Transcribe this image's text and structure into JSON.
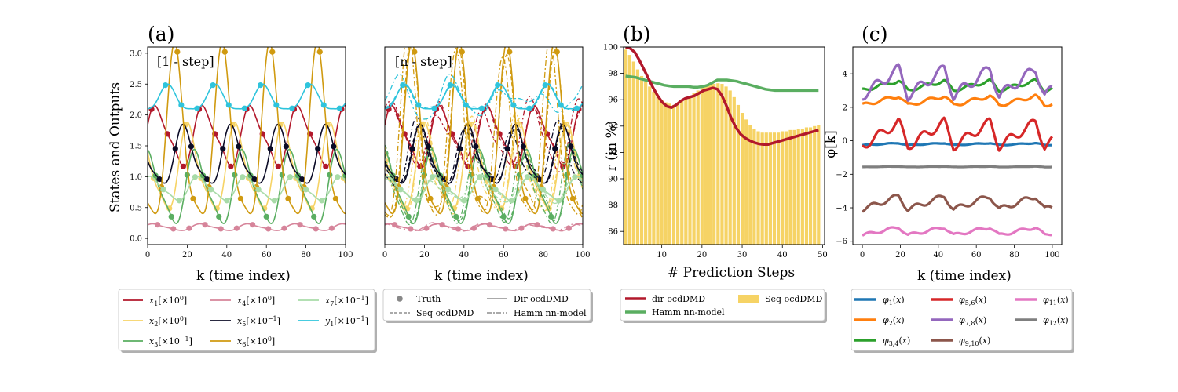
{
  "chart_data": [
    {
      "panel": "(a)",
      "note": "[1 - step]",
      "type": "line",
      "xlabel": "k (time index)",
      "ylabel": "States and Outputs",
      "xlim": [
        0,
        100
      ],
      "ylim": [
        -0.1,
        3.1
      ],
      "xticks": [
        "0",
        "20",
        "40",
        "60",
        "80",
        "100"
      ],
      "yticks": [
        "0.0",
        "0.5",
        "1.0",
        "1.5",
        "2.0",
        "2.5",
        "3.0"
      ],
      "series": [
        {
          "name": "x1[×10^0]",
          "color": "#b2182b",
          "mean": 1.65,
          "amp": 0.45,
          "period": 24,
          "phase": 0.3
        },
        {
          "name": "x2[×10^0]",
          "color": "#f6d365",
          "mean": 1.1,
          "amp": 0.65,
          "period": 24,
          "phase": 2.4
        },
        {
          "name": "x3[×10^-1]",
          "color": "#5aae61",
          "mean": 0.8,
          "amp": 0.55,
          "period": 24,
          "phase": 1.4
        },
        {
          "name": "x4[×10^0]",
          "color": "#d6849a",
          "mean": 0.18,
          "amp": 0.05,
          "period": 24,
          "phase": 0.6
        },
        {
          "name": "x5[×10^-1]",
          "color": "#0b0b26",
          "mean": 1.3,
          "amp": 0.45,
          "period": 24,
          "phase": 3.0
        },
        {
          "name": "x6[×10^0]",
          "color": "#d09a10",
          "mean": 1.5,
          "amp": 1.35,
          "period": 24,
          "phase": 4.2
        },
        {
          "name": "x7[×10^-1]",
          "color": "#a8dba8",
          "mean": 0.8,
          "amp": 0.18,
          "period": 24,
          "phase": 1.0
        },
        {
          "name": "y1[×10^-1]",
          "color": "#2ec4dc",
          "mean": 2.25,
          "amp": 0.2,
          "period": 24,
          "phase": 5.2
        }
      ]
    },
    {
      "note": "[n - step]",
      "type": "line",
      "xlabel": "k (time index)",
      "xlim": [
        0,
        100
      ],
      "ylim": [
        -0.1,
        3.1
      ],
      "xticks": [
        "0",
        "20",
        "40",
        "60",
        "80",
        "100"
      ],
      "legend": [
        "Truth",
        "Dir ocdDMD",
        "Seq ocdDMD",
        "Hamm nn-model"
      ]
    },
    {
      "panel": "(b)",
      "type": "bar",
      "xlabel": "# Prediction Steps",
      "ylabel": "r (in %)",
      "xlim": [
        0.5,
        50.5
      ],
      "ylim": [
        85,
        100
      ],
      "xticks": [
        "10",
        "20",
        "30",
        "40",
        "50"
      ],
      "yticks": [
        "86",
        "88",
        "90",
        "92",
        "94",
        "96",
        "98",
        "100"
      ],
      "steps": [
        1,
        2,
        3,
        4,
        5,
        6,
        7,
        8,
        9,
        10,
        11,
        12,
        13,
        14,
        15,
        16,
        17,
        18,
        19,
        20,
        21,
        22,
        23,
        24,
        25,
        26,
        27,
        28,
        29,
        30,
        31,
        32,
        33,
        34,
        35,
        36,
        37,
        38,
        39,
        40,
        41,
        42,
        43,
        44,
        45,
        46,
        47,
        48,
        49
      ],
      "seq_ocddmd": [
        99.8,
        99.4,
        98.9,
        98.3,
        97.8,
        97.4,
        97.0,
        96.6,
        96.3,
        96.0,
        95.8,
        95.7,
        95.6,
        95.7,
        95.9,
        96.1,
        96.3,
        96.5,
        96.7,
        96.9,
        97.0,
        97.1,
        97.2,
        97.25,
        97.2,
        97.0,
        96.7,
        96.2,
        95.6,
        95.0,
        94.5,
        94.1,
        93.8,
        93.6,
        93.5,
        93.5,
        93.5,
        93.5,
        93.5,
        93.6,
        93.6,
        93.7,
        93.7,
        93.8,
        93.8,
        93.9,
        93.9,
        94.0,
        94.1
      ],
      "dir_ocddmd": [
        100,
        99.9,
        99.6,
        99.0,
        98.3,
        97.6,
        96.9,
        96.3,
        95.8,
        95.5,
        95.4,
        95.6,
        95.9,
        96.1,
        96.2,
        96.3,
        96.5,
        96.7,
        96.8,
        96.9,
        96.8,
        96.3,
        95.5,
        94.6,
        93.9,
        93.4,
        93.1,
        92.9,
        92.75,
        92.65,
        92.6,
        92.6,
        92.7,
        92.8,
        92.9,
        93.0,
        93.1,
        93.2,
        93.3,
        93.4,
        93.5,
        93.6,
        93.7
      ],
      "dir_steps_start": 1,
      "hamm_nn_model": [
        97.8,
        97.75,
        97.7,
        97.6,
        97.5,
        97.4,
        97.3,
        97.2,
        97.1,
        97.05,
        97.0,
        97.0,
        97.0,
        97.0,
        96.95,
        96.95,
        97.0,
        97.1,
        97.3,
        97.5,
        97.5,
        97.5,
        97.45,
        97.4,
        97.3,
        97.2,
        97.1,
        97.0,
        96.9,
        96.8,
        96.75,
        96.7,
        96.7,
        96.7,
        96.7,
        96.7,
        96.7,
        96.7,
        96.7,
        96.7,
        96.7
      ],
      "legend": [
        "dir ocdDMD",
        "Seq ocdDMD",
        "Hamm nn-model"
      ],
      "colors": {
        "dir": "#b2182b",
        "seq": "#f6d365",
        "hamm": "#5aae61"
      }
    },
    {
      "panel": "(c)",
      "type": "line",
      "xlabel": "k (time index)",
      "ylabel": "φ[k]",
      "xlim": [
        -5,
        105
      ],
      "ylim": [
        -6.2,
        5.6
      ],
      "xticks": [
        "0",
        "20",
        "40",
        "60",
        "80",
        "100"
      ],
      "yticks": [
        "-6",
        "-4",
        "-2",
        "0",
        "2",
        "4"
      ],
      "series": [
        {
          "name": "φ1(x)",
          "color": "#1f77b4",
          "mean": -0.2,
          "amp": 0.08
        },
        {
          "name": "φ2(x)",
          "color": "#ff7f0e",
          "mean": 2.4,
          "amp": 0.35
        },
        {
          "name": "φ3,4(x)",
          "color": "#2ca02c",
          "mean": 3.3,
          "amp": 0.35
        },
        {
          "name": "φ5,6(x)",
          "color": "#d62728",
          "mean": 0.4,
          "amp": 0.9
        },
        {
          "name": "φ7,8(x)",
          "color": "#9467bd",
          "mean": 3.5,
          "amp": 1.0
        },
        {
          "name": "φ9,10(x)",
          "color": "#8c564b",
          "mean": -3.7,
          "amp": 0.5
        },
        {
          "name": "φ11(x)",
          "color": "#e377c2",
          "mean": -5.4,
          "amp": 0.3
        },
        {
          "name": "φ12(x)",
          "color": "#7f7f7f",
          "mean": -1.55,
          "amp": 0.02
        }
      ]
    }
  ],
  "legends": {
    "a": {
      "items": [
        {
          "label": "x",
          "sub": "1",
          "scale": "[×10",
          "exp": "0",
          "color": "#b2182b"
        },
        {
          "label": "x",
          "sub": "2",
          "scale": "[×10",
          "exp": "0",
          "color": "#f6d365"
        },
        {
          "label": "x",
          "sub": "3",
          "scale": "[×10",
          "exp": "−1",
          "color": "#5aae61"
        },
        {
          "label": "x",
          "sub": "4",
          "scale": "[×10",
          "exp": "0",
          "color": "#d6849a"
        },
        {
          "label": "x",
          "sub": "5",
          "scale": "[×10",
          "exp": "−1",
          "color": "#0b0b26"
        },
        {
          "label": "x",
          "sub": "6",
          "scale": "[×10",
          "exp": "0",
          "color": "#d09a10"
        },
        {
          "label": "x",
          "sub": "7",
          "scale": "[×10",
          "exp": "−1",
          "color": "#a8dba8"
        },
        {
          "label": "y",
          "sub": "1",
          "scale": "[×10",
          "exp": "−1",
          "color": "#2ec4dc"
        }
      ]
    },
    "a2": {
      "items": [
        {
          "label": "Truth",
          "style": "dot"
        },
        {
          "label": "Dir ocdDMD",
          "style": "solid"
        },
        {
          "label": "Seq ocdDMD",
          "style": "dashed"
        },
        {
          "label": "Hamm nn-model",
          "style": "dashdot"
        }
      ]
    },
    "b": {
      "items": [
        {
          "label": "dir ocdDMD",
          "color": "#b2182b",
          "style": "line"
        },
        {
          "label": "Seq ocdDMD",
          "color": "#f6d365",
          "style": "patch"
        },
        {
          "label": "Hamm nn-model",
          "color": "#5aae61",
          "style": "line"
        }
      ]
    },
    "c": {
      "items": [
        {
          "label": "φ",
          "sub": "1",
          "color": "#1f77b4"
        },
        {
          "label": "φ",
          "sub": "5,6",
          "color": "#d62728"
        },
        {
          "label": "φ",
          "sub": "11",
          "color": "#e377c2"
        },
        {
          "label": "φ",
          "sub": "2",
          "color": "#ff7f0e"
        },
        {
          "label": "φ",
          "sub": "7,8",
          "color": "#9467bd"
        },
        {
          "label": "φ",
          "sub": "12",
          "color": "#7f7f7f"
        },
        {
          "label": "φ",
          "sub": "3,4",
          "color": "#2ca02c"
        },
        {
          "label": "φ",
          "sub": "9,10",
          "color": "#8c564b"
        }
      ]
    }
  }
}
